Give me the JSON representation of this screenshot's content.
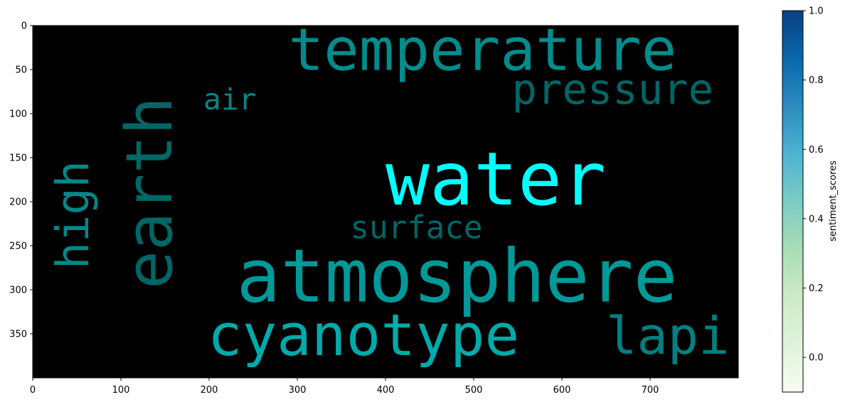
{
  "chart_data": {
    "type": "wordcloud",
    "background": "#000000",
    "xlim": [
      0,
      800
    ],
    "ylim": [
      400,
      0
    ],
    "xticks": [
      0,
      100,
      200,
      300,
      400,
      500,
      600,
      700
    ],
    "yticks": [
      0,
      50,
      100,
      150,
      200,
      250,
      300,
      350
    ],
    "words": [
      {
        "text": "water",
        "x": 280,
        "y": 140,
        "x2": 770,
        "y2": 210,
        "rotate": false,
        "color": "#00ffff"
      },
      {
        "text": "atmosphere",
        "x": 172,
        "y": 250,
        "x2": 790,
        "y2": 320,
        "rotate": false,
        "color": "#009999"
      },
      {
        "text": "temperature",
        "x": 240,
        "y": 0,
        "x2": 780,
        "y2": 56,
        "rotate": false,
        "color": "#008c8c"
      },
      {
        "text": "pressure",
        "x": 525,
        "y": 52,
        "x2": 790,
        "y2": 92,
        "rotate": false,
        "color": "#006666"
      },
      {
        "text": "air",
        "x": 172,
        "y": 70,
        "x2": 275,
        "y2": 98,
        "rotate": false,
        "color": "#008888"
      },
      {
        "text": "earth",
        "x": 90,
        "y": 15,
        "x2": 175,
        "y2": 365,
        "rotate": true,
        "color": "#006666"
      },
      {
        "text": "high",
        "x": 15,
        "y": 145,
        "x2": 75,
        "y2": 285,
        "rotate": true,
        "color": "#008888"
      },
      {
        "text": "surface",
        "x": 350,
        "y": 215,
        "x2": 520,
        "y2": 245,
        "rotate": false,
        "color": "#006666"
      },
      {
        "text": "cyanotype",
        "x": 180,
        "y": 325,
        "x2": 570,
        "y2": 380,
        "rotate": false,
        "color": "#00aaaa"
      },
      {
        "text": "lapi",
        "x": 650,
        "y": 325,
        "x2": 790,
        "y2": 380,
        "rotate": false,
        "color": "#008080"
      }
    ]
  },
  "colorbar": {
    "label": "sentiment_scores",
    "min": -0.1,
    "max": 1.0,
    "ticks": [
      "0.0",
      "0.2",
      "0.4",
      "0.6",
      "0.8",
      "1.0"
    ],
    "tick_values": [
      0,
      0.2,
      0.4,
      0.6,
      0.8,
      1.0
    ],
    "colormap": "GnBu",
    "stops": [
      "#f7fcf0",
      "#e0f3db",
      "#ccebc5",
      "#a8ddb5",
      "#7bccc4",
      "#4eb3d3",
      "#2b8cbe",
      "#0868ac",
      "#084081"
    ]
  }
}
